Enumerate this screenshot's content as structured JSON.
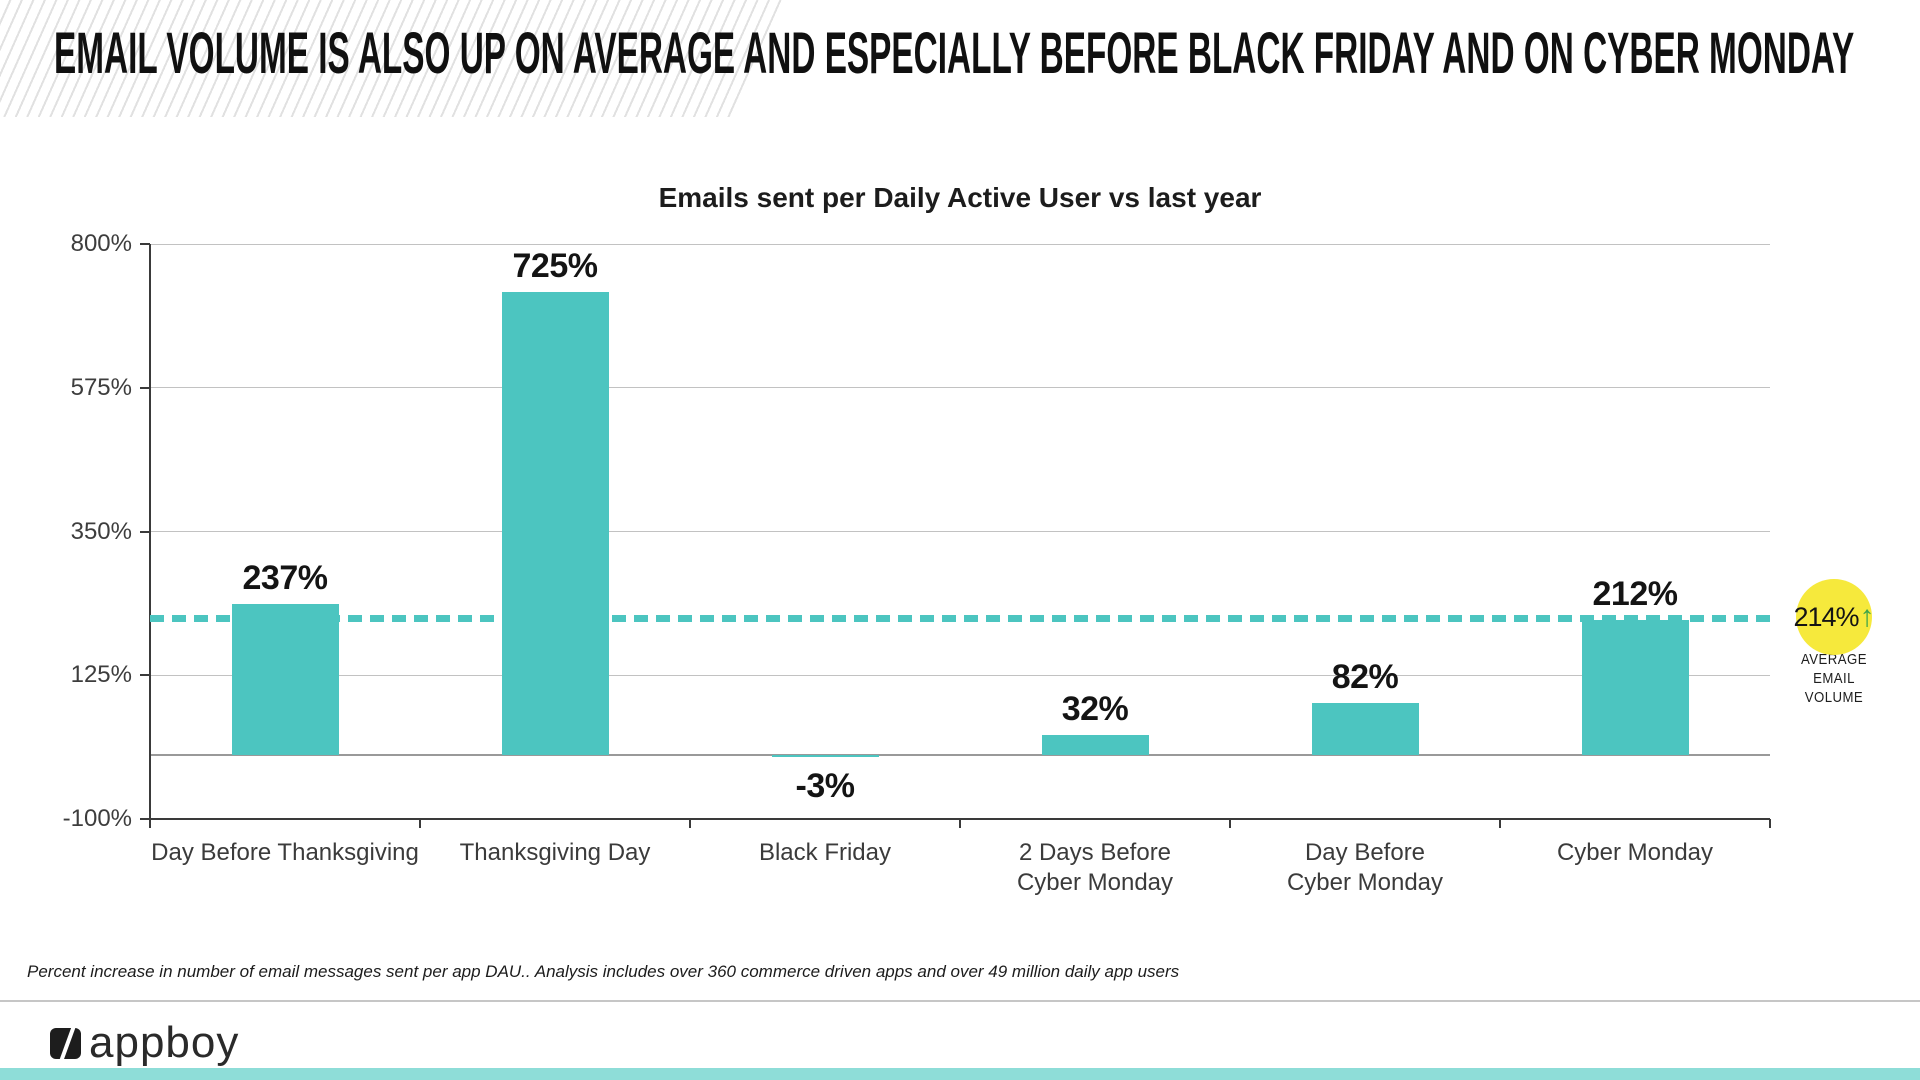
{
  "slide": {
    "title": "EMAIL VOLUME IS ALSO UP ON AVERAGE AND ESPECIALLY BEFORE BLACK FRIDAY AND ON CYBER MONDAY",
    "footnote": "Percent increase in number of email messages sent per app DAU..  Analysis includes over 360 commerce driven apps and over 49 million daily app users",
    "brand": "appboy"
  },
  "chart_data": {
    "type": "bar",
    "title": "Emails sent per Daily Active User vs last year",
    "categories": [
      "Day Before Thanksgiving",
      "Thanksgiving Day",
      "Black Friday",
      "2 Days Before\nCyber Monday",
      "Day Before\nCyber Monday",
      "Cyber Monday"
    ],
    "values": [
      237,
      725,
      -3,
      32,
      82,
      212
    ],
    "value_labels": [
      "237%",
      "725%",
      "-3%",
      "32%",
      "82%",
      "212%"
    ],
    "ylim": [
      -100,
      800
    ],
    "yticks": [
      800,
      575,
      350,
      125,
      -100
    ],
    "ytick_labels": [
      "800%",
      "575%",
      "350%",
      "125%",
      "-100%"
    ],
    "grid": "horizontal",
    "zero_baseline": true,
    "legend": "none",
    "average_line": {
      "value": 214,
      "label": "214%",
      "style": "dotted",
      "caption_lines": [
        "AVERAGE",
        "EMAIL",
        "VOLUME"
      ]
    },
    "colors": {
      "bar": "#4CC5C0",
      "average_line": "#4CC5C0",
      "badge": "#F6E93C",
      "arrow": "#3FA54A",
      "bottom_bar": "#8EDDD8"
    }
  },
  "icons": {
    "up_arrow": "↑"
  }
}
